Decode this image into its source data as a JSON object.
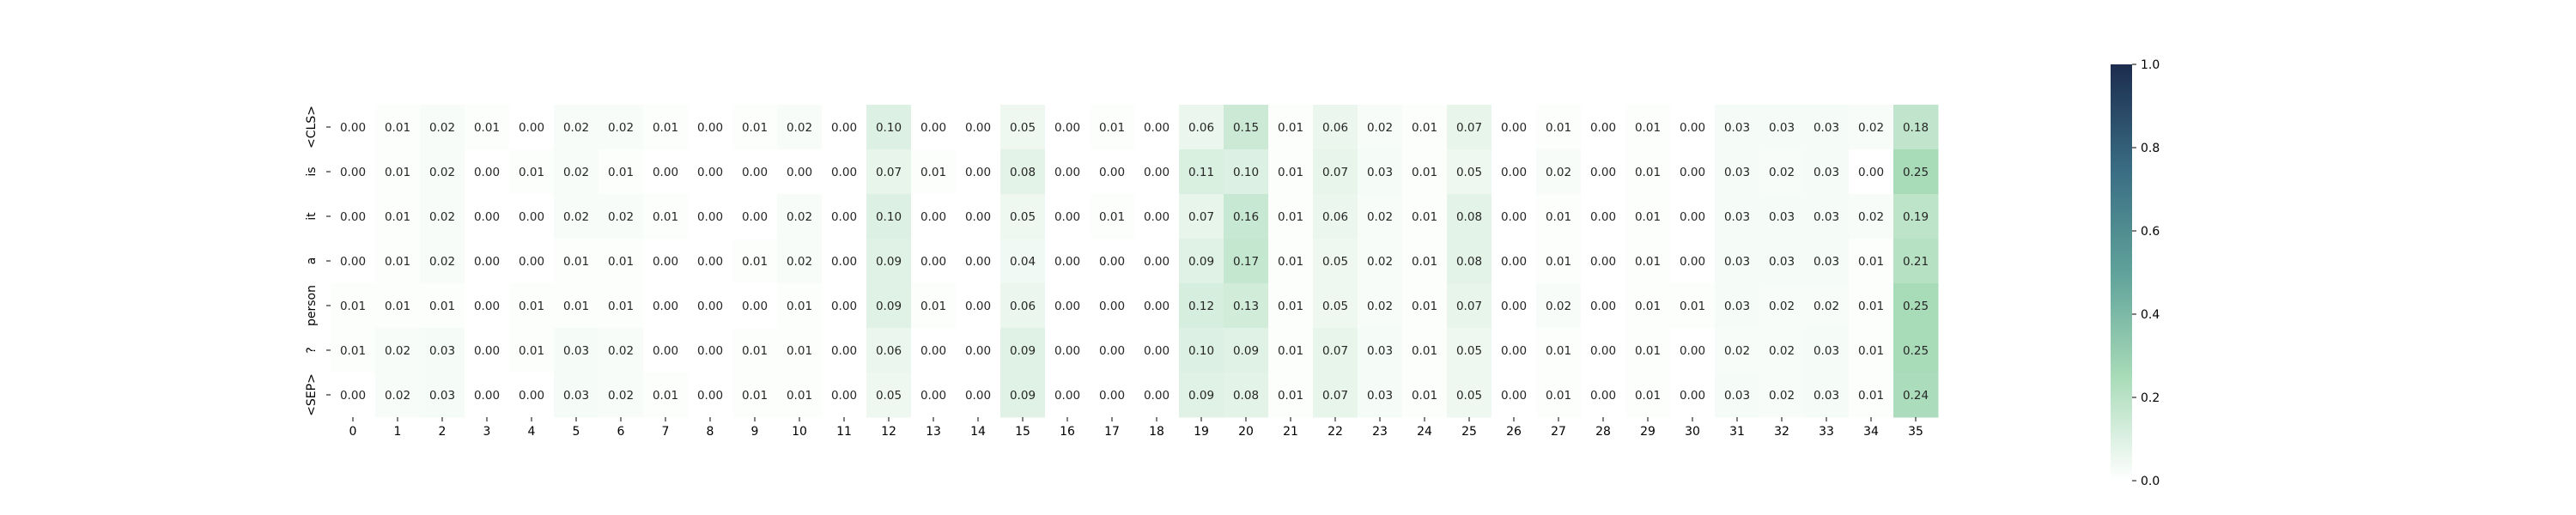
{
  "chart_data": {
    "type": "heatmap",
    "title": "",
    "xlabel": "",
    "ylabel": "",
    "x_categories": [
      "0",
      "1",
      "2",
      "3",
      "4",
      "5",
      "6",
      "7",
      "8",
      "9",
      "10",
      "11",
      "12",
      "13",
      "14",
      "15",
      "16",
      "17",
      "18",
      "19",
      "20",
      "21",
      "22",
      "23",
      "24",
      "25",
      "26",
      "27",
      "28",
      "29",
      "30",
      "31",
      "32",
      "33",
      "34",
      "35"
    ],
    "y_categories": [
      "<CLS>",
      "is",
      "it",
      "a",
      "person",
      "?",
      "<SEP>"
    ],
    "values": [
      [
        0.0,
        0.01,
        0.02,
        0.01,
        0.0,
        0.02,
        0.02,
        0.01,
        0.0,
        0.01,
        0.02,
        0.0,
        0.1,
        0.0,
        0.0,
        0.05,
        0.0,
        0.01,
        0.0,
        0.06,
        0.15,
        0.01,
        0.06,
        0.02,
        0.01,
        0.07,
        0.0,
        0.01,
        0.0,
        0.01,
        0.0,
        0.03,
        0.03,
        0.03,
        0.02,
        0.18
      ],
      [
        0.0,
        0.01,
        0.02,
        0.0,
        0.01,
        0.02,
        0.01,
        0.0,
        0.0,
        0.0,
        0.0,
        0.0,
        0.07,
        0.01,
        0.0,
        0.08,
        0.0,
        0.0,
        0.0,
        0.11,
        0.1,
        0.01,
        0.07,
        0.03,
        0.01,
        0.05,
        0.0,
        0.02,
        0.0,
        0.01,
        0.0,
        0.03,
        0.02,
        0.03,
        0.0,
        0.25
      ],
      [
        0.0,
        0.01,
        0.02,
        0.0,
        0.0,
        0.02,
        0.02,
        0.01,
        0.0,
        0.0,
        0.02,
        0.0,
        0.1,
        0.0,
        0.0,
        0.05,
        0.0,
        0.01,
        0.0,
        0.07,
        0.16,
        0.01,
        0.06,
        0.02,
        0.01,
        0.08,
        0.0,
        0.01,
        0.0,
        0.01,
        0.0,
        0.03,
        0.03,
        0.03,
        0.02,
        0.19
      ],
      [
        0.0,
        0.01,
        0.02,
        0.0,
        0.0,
        0.01,
        0.01,
        0.0,
        0.0,
        0.01,
        0.02,
        0.0,
        0.09,
        0.0,
        0.0,
        0.04,
        0.0,
        0.0,
        0.0,
        0.09,
        0.17,
        0.01,
        0.05,
        0.02,
        0.01,
        0.08,
        0.0,
        0.01,
        0.0,
        0.01,
        0.0,
        0.03,
        0.03,
        0.03,
        0.01,
        0.21
      ],
      [
        0.01,
        0.01,
        0.01,
        0.0,
        0.01,
        0.01,
        0.01,
        0.0,
        0.0,
        0.0,
        0.01,
        0.0,
        0.09,
        0.01,
        0.0,
        0.06,
        0.0,
        0.0,
        0.0,
        0.12,
        0.13,
        0.01,
        0.05,
        0.02,
        0.01,
        0.07,
        0.0,
        0.02,
        0.0,
        0.01,
        0.01,
        0.03,
        0.02,
        0.02,
        0.01,
        0.25
      ],
      [
        0.01,
        0.02,
        0.03,
        0.0,
        0.01,
        0.03,
        0.02,
        0.0,
        0.0,
        0.01,
        0.01,
        0.0,
        0.06,
        0.0,
        0.0,
        0.09,
        0.0,
        0.0,
        0.0,
        0.1,
        0.09,
        0.01,
        0.07,
        0.03,
        0.01,
        0.05,
        0.0,
        0.01,
        0.0,
        0.01,
        0.0,
        0.02,
        0.02,
        0.03,
        0.01,
        0.25
      ],
      [
        0.0,
        0.02,
        0.03,
        0.0,
        0.0,
        0.03,
        0.02,
        0.01,
        0.0,
        0.01,
        0.01,
        0.0,
        0.05,
        0.0,
        0.0,
        0.09,
        0.0,
        0.0,
        0.0,
        0.09,
        0.08,
        0.01,
        0.07,
        0.03,
        0.01,
        0.05,
        0.0,
        0.01,
        0.0,
        0.01,
        0.0,
        0.03,
        0.02,
        0.03,
        0.01,
        0.24
      ]
    ],
    "value_format": "0.00",
    "colorbar": {
      "range": [
        0.0,
        1.0
      ],
      "ticks": [
        "0.0",
        "0.2",
        "0.4",
        "0.6",
        "0.8",
        "1.0"
      ],
      "colormap": [
        "#ffffff",
        "#a8dbb8",
        "#5fa29a",
        "#396c83",
        "#1c2c4e"
      ]
    },
    "grid": false,
    "legend": "colorbar-right"
  }
}
